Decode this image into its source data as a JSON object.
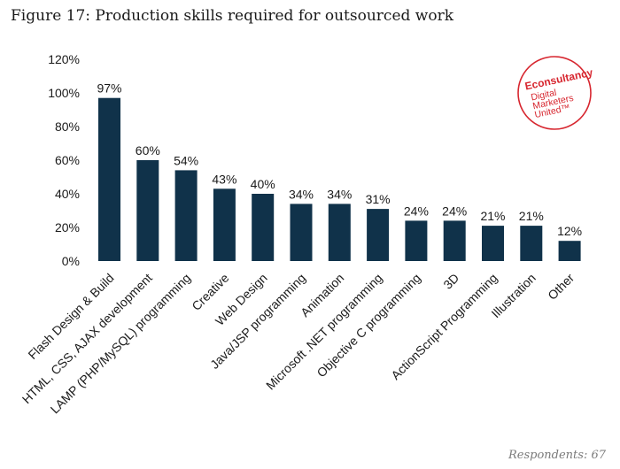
{
  "title": "Figure 17: Production skills required for outsourced work",
  "footer": "Respondents: 67",
  "logo": {
    "brand": "Econsultancy",
    "tagline_lines": [
      "Digital",
      "Marketers",
      "United™"
    ],
    "color": "#d7262f"
  },
  "bar_color": "#10324a",
  "chart_data": {
    "type": "bar",
    "categories": [
      "Flash Design & Build",
      "HTML, CSS, AJAX development",
      "LAMP (PHP/MySQL) programming",
      "Creative",
      "Web Design",
      "Java/JSP programming",
      "Animation",
      "Microsoft .NET programming",
      "Objective C programming",
      "3D",
      "ActionScript Programming",
      "Illustration",
      "Other"
    ],
    "values": [
      97,
      60,
      54,
      43,
      40,
      34,
      34,
      31,
      24,
      24,
      21,
      21,
      12
    ],
    "value_labels": [
      "97%",
      "60%",
      "54%",
      "43%",
      "40%",
      "34%",
      "34%",
      "31%",
      "24%",
      "24%",
      "21%",
      "21%",
      "12%"
    ],
    "ylim": [
      0,
      120
    ],
    "yticks": [
      "0%",
      "20%",
      "40%",
      "60%",
      "80%",
      "100%",
      "120%"
    ],
    "grid": false
  }
}
